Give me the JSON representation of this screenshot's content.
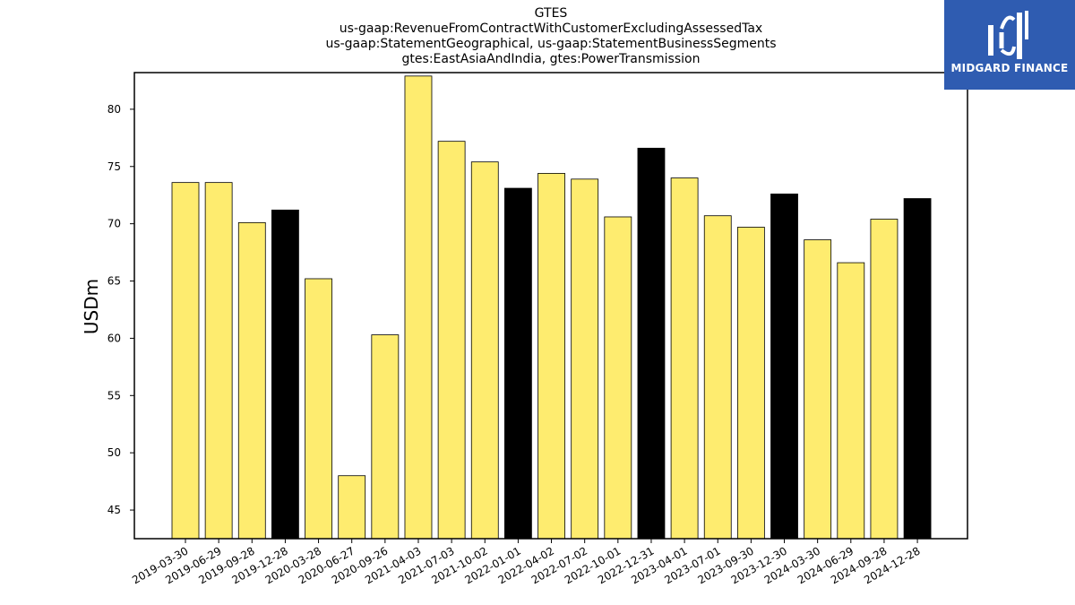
{
  "chart_data": {
    "type": "bar",
    "title_lines": [
      "GTES",
      "us-gaap:RevenueFromContractWithCustomerExcludingAssessedTax",
      "us-gaap:StatementGeographical, us-gaap:StatementBusinessSegments",
      "gtes:EastAsiaAndIndia, gtes:PowerTransmission"
    ],
    "ylabel": "USDm",
    "xlabel": "",
    "ylim": [
      42.5,
      83.2
    ],
    "yticks": [
      45,
      50,
      55,
      60,
      65,
      70,
      75,
      80
    ],
    "categories": [
      "2019-03-30",
      "2019-06-29",
      "2019-09-28",
      "2019-12-28",
      "2020-03-28",
      "2020-06-27",
      "2020-09-26",
      "2021-04-03",
      "2021-07-03",
      "2021-10-02",
      "2022-01-01",
      "2022-04-02",
      "2022-07-02",
      "2022-10-01",
      "2022-12-31",
      "2023-04-01",
      "2023-07-01",
      "2023-09-30",
      "2023-12-30",
      "2024-03-30",
      "2024-06-29",
      "2024-09-28",
      "2024-12-28"
    ],
    "values": [
      73.6,
      73.6,
      70.1,
      71.2,
      65.2,
      48.0,
      60.3,
      82.9,
      77.2,
      75.4,
      73.1,
      74.4,
      73.9,
      70.6,
      76.6,
      74.0,
      70.7,
      69.7,
      72.6,
      68.6,
      66.6,
      70.4,
      72.2
    ],
    "highlight": [
      false,
      false,
      false,
      true,
      false,
      false,
      false,
      false,
      false,
      false,
      true,
      false,
      false,
      false,
      true,
      false,
      false,
      false,
      true,
      false,
      false,
      false,
      true
    ],
    "colors": {
      "normal": "#feec6f",
      "highlight": "#000000",
      "edge": "#000000"
    },
    "grid": false
  },
  "logo": {
    "text": "MIDGARD FINANCE",
    "background": "#2f5cb1"
  }
}
